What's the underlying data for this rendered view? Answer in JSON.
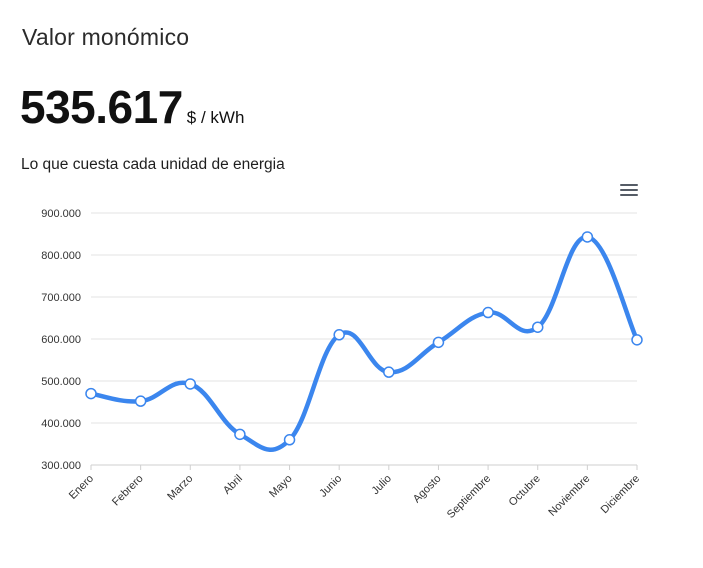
{
  "header": {
    "title": "Valor monómico",
    "value": "535.617",
    "unit": "$ / kWh",
    "subtitle": "Lo que cuesta cada unidad de energia"
  },
  "toolbar": {
    "menu_icon": "hamburger-menu-icon"
  },
  "colors": {
    "line": "#3b86ee",
    "grid": "#e3e3e3",
    "axis_text": "#333333"
  },
  "chart_data": {
    "type": "line",
    "title": "",
    "xlabel": "",
    "ylabel": "",
    "categories": [
      "Enero",
      "Febrero",
      "Marzo",
      "Abril",
      "Mayo",
      "Junio",
      "Julio",
      "Agosto",
      "Septiembre",
      "Octubre",
      "Noviembre",
      "Diciembre"
    ],
    "series": [
      {
        "name": "Valor monómico",
        "values": [
          470000,
          452000,
          493000,
          373000,
          360000,
          610000,
          521000,
          592000,
          663000,
          628000,
          843000,
          598000
        ]
      }
    ],
    "ylim": [
      300000,
      900000
    ],
    "yticks": [
      300000,
      400000,
      500000,
      600000,
      700000,
      800000,
      900000
    ],
    "ytick_labels": [
      "300.000",
      "400.000",
      "500.000",
      "600.000",
      "700.000",
      "800.000",
      "900.000"
    ],
    "grid": true,
    "smooth": true
  }
}
